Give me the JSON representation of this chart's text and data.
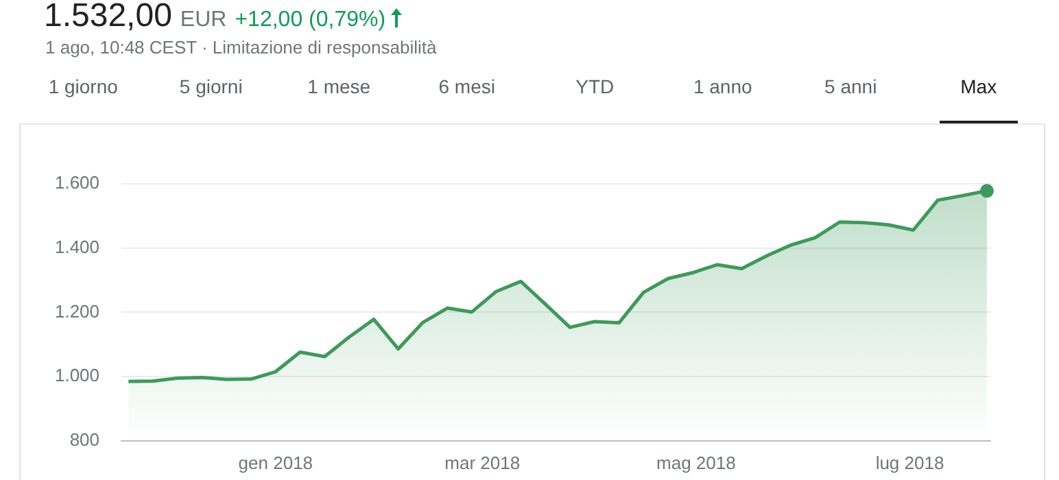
{
  "chart_data": {
    "type": "area",
    "title": "1.532,00",
    "subtitle": "1 ago, 10:48 CEST · Limitazione di responsabilità",
    "annotations": [
      "EUR",
      "+12,00 (0,79%)",
      "1 giorno",
      "5 giorni",
      "1 mese",
      "6 mesi",
      "YTD",
      "1 anno",
      "5 anni",
      "Max"
    ],
    "x": [
      "2017-11-20",
      "2017-11-27",
      "2017-12-04",
      "2017-12-11",
      "2017-12-18",
      "2017-12-25",
      "2018-01-01",
      "2018-01-08",
      "2018-01-15",
      "2018-01-22",
      "2018-01-29",
      "2018-02-05",
      "2018-02-12",
      "2018-02-19",
      "2018-02-26",
      "2018-03-05",
      "2018-03-12",
      "2018-03-19",
      "2018-03-26",
      "2018-04-02",
      "2018-04-09",
      "2018-04-16",
      "2018-04-23",
      "2018-04-30",
      "2018-05-07",
      "2018-05-14",
      "2018-05-21",
      "2018-05-28",
      "2018-06-04",
      "2018-06-11",
      "2018-06-18",
      "2018-06-25",
      "2018-07-02",
      "2018-07-09",
      "2018-07-16",
      "2018-07-23"
    ],
    "series": [
      {
        "color": "#3d9a5a",
        "values": [
          985,
          986,
          995,
          997,
          991,
          992,
          1015,
          1076,
          1062,
          1123,
          1178,
          1086,
          1168,
          1213,
          1201,
          1265,
          1296,
          1225,
          1153,
          1171,
          1167,
          1262,
          1305,
          1323,
          1348,
          1336,
          1375,
          1409,
          1432,
          1481,
          1479,
          1472,
          1456,
          1549,
          1563,
          1578
        ]
      },
      {
        "type": "scatter",
        "color": "#3d9a5a",
        "marker": "circle",
        "x": [
          "2018-07-23"
        ],
        "values": [
          1578
        ]
      }
    ],
    "xlim": [
      "2017-11-18",
      "2018-07-24"
    ],
    "xticks": [
      {
        "value": "2018-01-01",
        "label": "gen 2018"
      },
      {
        "value": "2018-03-01",
        "label": "mar 2018"
      },
      {
        "value": "2018-05-01",
        "label": "mag 2018"
      },
      {
        "value": "2018-07-01",
        "label": "lug 2018"
      }
    ],
    "ylim": [
      800,
      1600
    ],
    "yticks": [
      800,
      {
        "value": 1000,
        "label": "1.000"
      },
      {
        "value": 1200,
        "label": "1.200"
      },
      {
        "value": 1400,
        "label": "1.400"
      },
      {
        "value": 1600,
        "label": "1.600"
      }
    ],
    "grid": "y",
    "legend": false,
    "marker": "none",
    "line_style": "solid"
  }
}
